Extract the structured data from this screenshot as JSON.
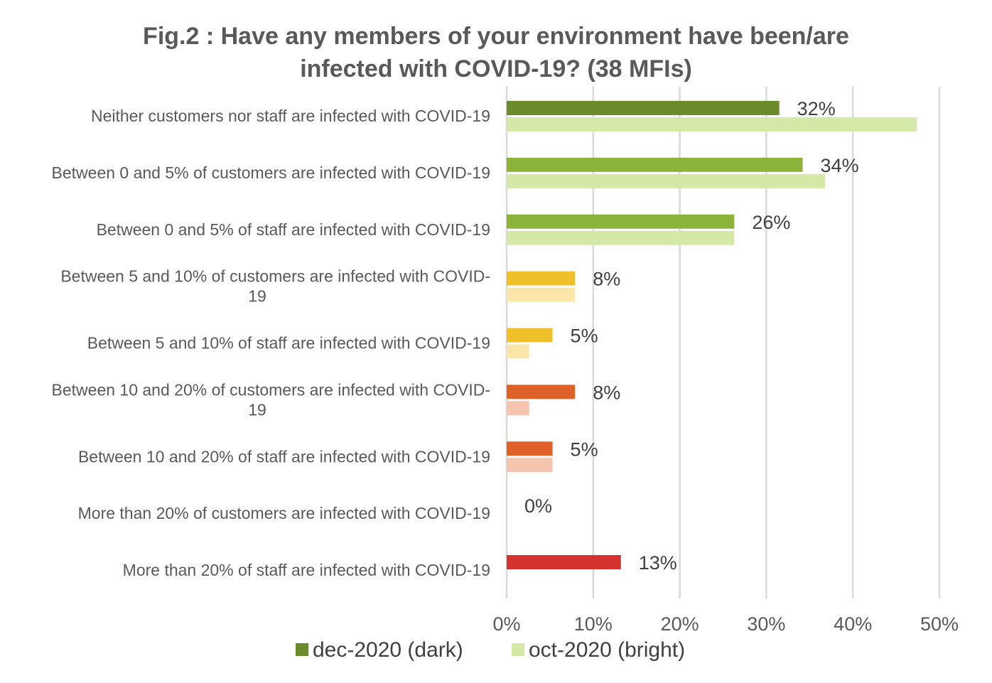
{
  "chart_data": {
    "type": "bar",
    "orientation": "horizontal",
    "title": "Fig.2 : Have any members of your environment have been/are infected with COVID-19? (38 MFIs)",
    "title_lines": [
      "Fig.2 : Have any members of your environment have been/are",
      "infected with COVID-19? (38 MFIs)"
    ],
    "categories": [
      "Neither customers nor staff are infected with COVID-19",
      "Between 0 and 5% of customers are infected with COVID-19",
      "Between 0 and 5% of staff are infected with COVID-19",
      "Between 5 and 10% of customers are infected with COVID-19",
      "Between 5 and 10% of staff are infected with COVID-19",
      "Between 10 and 20% of customers are infected with COVID-19",
      "Between 10 and 20% of staff are infected with COVID-19",
      "More than 20% of customers are infected with COVID-19",
      "More than 20% of staff are infected with COVID-19"
    ],
    "category_lines": [
      [
        "Neither customers nor staff are infected with COVID-19"
      ],
      [
        "Between 0 and 5% of customers are infected with COVID-19"
      ],
      [
        "Between 0 and 5% of staff are infected with COVID-19"
      ],
      [
        "Between 5 and 10% of customers are infected with COVID-",
        "19"
      ],
      [
        "Between 5 and 10% of staff are infected with COVID-19"
      ],
      [
        "Between 10 and 20% of customers are infected with COVID-",
        "19"
      ],
      [
        "Between 10 and 20% of staff are infected with COVID-19"
      ],
      [
        "More than 20% of customers are infected with COVID-19"
      ],
      [
        "More than 20% of staff are infected with COVID-19"
      ]
    ],
    "series": [
      {
        "name": "dec-2020 (dark)",
        "values": [
          31.5,
          34.2,
          26.3,
          7.9,
          5.3,
          7.9,
          5.3,
          0,
          13.2
        ],
        "data_labels": [
          "32%",
          "34%",
          "26%",
          "8%",
          "5%",
          "8%",
          "5%",
          "0%",
          "13%"
        ],
        "colors": [
          "#6b8a2a",
          "#8db33a",
          "#8db33a",
          "#f0c02a",
          "#f0c02a",
          "#df6128",
          "#df6128",
          "#d3322f",
          "#d3322f"
        ]
      },
      {
        "name": "oct-2020 (bright)",
        "values": [
          47.4,
          36.8,
          26.3,
          7.9,
          2.6,
          2.6,
          5.3,
          0,
          0
        ],
        "colors": [
          "#d4e8a8",
          "#d4e8a8",
          "#d4e8a8",
          "#fae6a8",
          "#fae6a8",
          "#f4c4ae",
          "#f4c4ae",
          "#f4c4ae",
          "#f4c4ae"
        ]
      }
    ],
    "xlim": [
      0,
      50
    ],
    "xticks": [
      0,
      10,
      20,
      30,
      40,
      50
    ],
    "xtick_labels": [
      "0%",
      "10%",
      "20%",
      "30%",
      "40%",
      "50%"
    ],
    "grid": true,
    "legend": {
      "position": "bottom",
      "items": [
        {
          "label": "dec-2020 (dark)",
          "color": "#6b8a2a"
        },
        {
          "label": "oct-2020 (bright)",
          "color": "#d4e8a8"
        }
      ]
    }
  }
}
